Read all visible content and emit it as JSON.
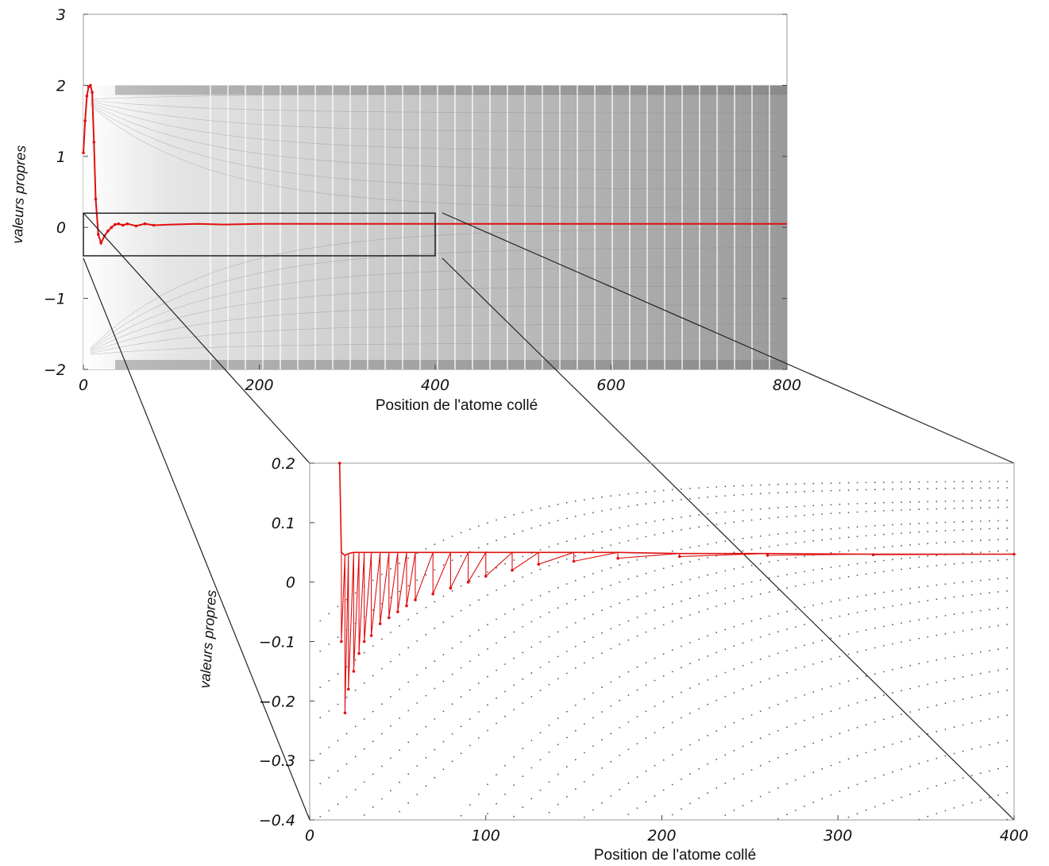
{
  "chart_data": [
    {
      "type": "scatter",
      "panel": "overview",
      "xlabel": "Position de l'atome collé",
      "ylabel": "valeurs propres",
      "xlim": [
        0,
        800
      ],
      "ylim": [
        -2,
        3
      ],
      "xticks": [
        "0",
        "200",
        "400",
        "600",
        "800"
      ],
      "yticks": [
        "3",
        "2",
        "1",
        "0",
        "−1",
        "−2"
      ],
      "background_band": [
        -2,
        2
      ],
      "series": [
        {
          "color": "#e01010",
          "x": [
            0,
            2,
            4,
            6,
            8,
            10,
            12,
            14,
            17,
            20,
            24,
            28,
            32,
            36,
            40,
            45,
            50,
            60,
            70,
            80,
            100,
            130,
            160,
            200,
            250,
            300,
            400,
            500,
            600,
            700,
            800
          ],
          "y": [
            1.05,
            1.5,
            1.85,
            1.98,
            2.0,
            1.9,
            1.2,
            0.4,
            -0.1,
            -0.22,
            -0.12,
            -0.05,
            0.0,
            0.04,
            0.05,
            0.03,
            0.05,
            0.02,
            0.05,
            0.03,
            0.04,
            0.05,
            0.04,
            0.05,
            0.05,
            0.05,
            0.05,
            0.05,
            0.05,
            0.05,
            0.05
          ]
        }
      ],
      "zoom_box": {
        "x": [
          0,
          400
        ],
        "y": [
          -0.4,
          0.2
        ]
      }
    },
    {
      "type": "scatter",
      "panel": "zoom",
      "xlabel": "Position de l'atome collé",
      "ylabel": "valeurs propres",
      "xlim": [
        0,
        400
      ],
      "ylim": [
        -0.4,
        0.2
      ],
      "xticks": [
        "0",
        "100",
        "200",
        "300",
        "400"
      ],
      "yticks": [
        "0.2",
        "0.1",
        "0",
        "−0.1",
        "−0.2",
        "−0.3",
        "−0.4"
      ],
      "grey_series_note": "many eigenvalue branches shown as grey dotted curves converging to horizontal levels",
      "series": [
        {
          "color": "#e01010",
          "x": [
            17,
            18,
            20,
            22,
            25,
            28,
            31,
            35,
            40,
            45,
            50,
            55,
            60,
            70,
            80,
            90,
            100,
            115,
            130,
            150,
            175,
            210,
            260,
            320,
            400
          ],
          "upper": [
            0.2,
            0.05,
            0.045,
            0.048,
            0.05,
            0.05,
            0.05,
            0.05,
            0.05,
            0.05,
            0.05,
            0.05,
            0.05,
            0.05,
            0.05,
            0.05,
            0.05,
            0.05,
            0.05,
            0.05,
            0.05,
            0.048,
            0.048,
            0.047,
            0.047
          ],
          "lower": [
            0.2,
            -0.1,
            -0.22,
            -0.18,
            -0.15,
            -0.12,
            -0.1,
            -0.09,
            -0.07,
            -0.06,
            -0.05,
            -0.04,
            -0.03,
            -0.02,
            -0.01,
            0.0,
            0.01,
            0.02,
            0.03,
            0.035,
            0.04,
            0.043,
            0.045,
            0.046,
            0.047
          ]
        }
      ]
    }
  ]
}
